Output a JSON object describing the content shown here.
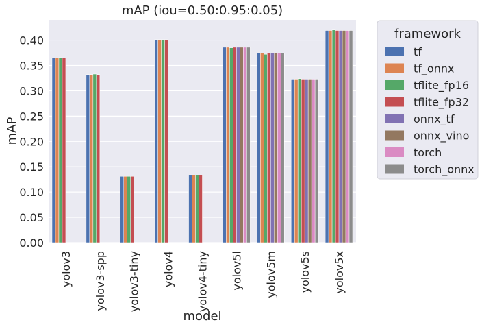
{
  "chart_data": {
    "type": "bar",
    "title": "mAP (iou=0.50:0.95:0.05)",
    "xlabel": "model",
    "ylabel": "mAP",
    "ylim": [
      0,
      0.44
    ],
    "yticks": [
      "0.00",
      "0.05",
      "0.10",
      "0.15",
      "0.20",
      "0.25",
      "0.30",
      "0.35",
      "0.40"
    ],
    "grid": true,
    "legend_title": "framework",
    "legend_position": "outside-right",
    "categories": [
      "yolov3",
      "yolov3-spp",
      "yolov3-tiny",
      "yolov4",
      "yolov4-tiny",
      "yolov5l",
      "yolov5m",
      "yolov5s",
      "yolov5x"
    ],
    "series": [
      {
        "name": "tf",
        "color": "#4c72b0",
        "values": [
          0.365,
          0.332,
          0.131,
          0.401,
          0.133,
          0.386,
          0.374,
          0.323,
          0.419
        ]
      },
      {
        "name": "tf_onnx",
        "color": "#dd8452",
        "values": [
          0.365,
          0.332,
          0.131,
          0.401,
          0.133,
          0.386,
          0.374,
          0.323,
          0.419
        ]
      },
      {
        "name": "tflite_fp16",
        "color": "#55a868",
        "values": [
          0.366,
          0.333,
          0.131,
          0.401,
          0.133,
          0.385,
          0.372,
          0.324,
          0.42
        ]
      },
      {
        "name": "tflite_fp32",
        "color": "#c44e52",
        "values": [
          0.365,
          0.332,
          0.131,
          0.401,
          0.133,
          0.386,
          0.374,
          0.323,
          0.419
        ]
      },
      {
        "name": "onnx_tf",
        "color": "#8172b3",
        "values": [
          null,
          null,
          null,
          null,
          null,
          0.386,
          0.374,
          0.323,
          0.419
        ]
      },
      {
        "name": "onnx_vino",
        "color": "#937860",
        "values": [
          null,
          null,
          null,
          null,
          null,
          0.386,
          0.374,
          0.323,
          0.419
        ]
      },
      {
        "name": "torch",
        "color": "#da8bc3",
        "values": [
          null,
          null,
          null,
          null,
          null,
          0.386,
          0.374,
          0.323,
          0.419
        ]
      },
      {
        "name": "torch_onnx",
        "color": "#8c8c8c",
        "values": [
          null,
          null,
          null,
          null,
          null,
          0.386,
          0.374,
          0.323,
          0.419
        ]
      }
    ]
  },
  "colors": {
    "plot_background": "#eaeaf2",
    "grid": "#ffffff",
    "text": "#262626"
  }
}
